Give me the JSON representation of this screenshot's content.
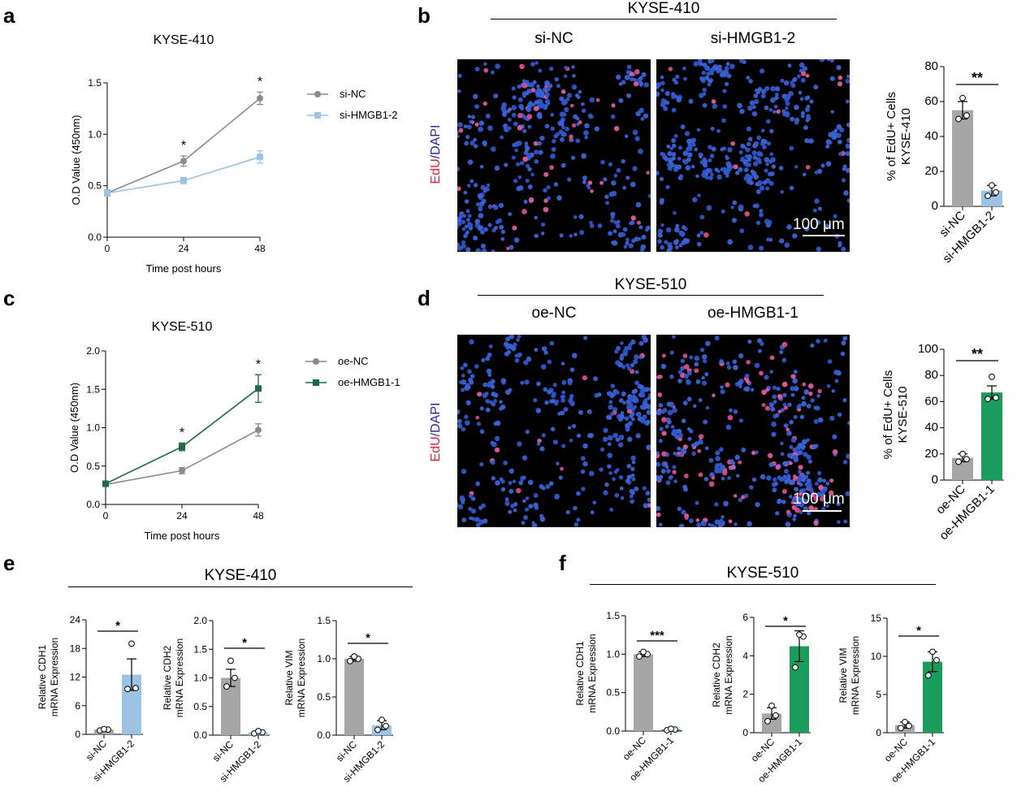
{
  "panels": {
    "a": "a",
    "b": "b",
    "c": "c",
    "d": "d",
    "e": "e",
    "f": "f"
  },
  "colors": {
    "gray": "#8c8c8c",
    "blue": "#9cc3e4",
    "green": "#1a8a55",
    "dark_green": "#1e6b45"
  },
  "b_header": {
    "title": "KYSE-410",
    "left": "si-NC",
    "right": "si-HMGB1-2",
    "stain_red": "EdU",
    "stain_blue": "/DAPI",
    "scale": "100 μm"
  },
  "d_header": {
    "title": "KYSE-510",
    "left": "oe-NC",
    "right": "oe-HMGB1-1",
    "stain_red": "EdU",
    "stain_blue": "/DAPI",
    "scale": "100 μm"
  },
  "e_header": {
    "title": "KYSE-410"
  },
  "f_header": {
    "title": "KYSE-510"
  },
  "chart_data": [
    {
      "id": "a",
      "type": "line",
      "title": "KYSE-410",
      "xlabel": "Time post hours",
      "ylabel": "O.D Value (450nm)",
      "x": [
        0,
        24,
        48
      ],
      "xticks": [
        "0",
        "24",
        "48"
      ],
      "yticks": [
        "0.0",
        "0.5",
        "1.0",
        "1.5"
      ],
      "ylim": [
        0,
        1.5
      ],
      "series": [
        {
          "name": "si-NC",
          "values": [
            0.43,
            0.74,
            1.35
          ],
          "err": [
            0.03,
            0.05,
            0.06
          ],
          "color": "#8c8c8c",
          "marker": "circle"
        },
        {
          "name": "si-HMGB1-2",
          "values": [
            0.43,
            0.55,
            0.78
          ],
          "err": [
            0.03,
            0.03,
            0.06
          ],
          "color": "#9cc3e4",
          "marker": "square"
        }
      ],
      "annotations": [
        {
          "x": 24,
          "text": "*"
        },
        {
          "x": 48,
          "text": "*"
        }
      ],
      "legend": "right"
    },
    {
      "id": "c",
      "type": "line",
      "title": "KYSE-510",
      "xlabel": "Time post hours",
      "ylabel": "O.D Value (450nm)",
      "x": [
        0,
        24,
        48
      ],
      "xticks": [
        "0",
        "24",
        "48"
      ],
      "yticks": [
        "0.0",
        "0.5",
        "1.0",
        "1.5",
        "2.0"
      ],
      "ylim": [
        0,
        2.0
      ],
      "series": [
        {
          "name": "oe-NC",
          "values": [
            0.26,
            0.44,
            0.97
          ],
          "err": [
            0.02,
            0.04,
            0.08
          ],
          "color": "#8c8c8c",
          "marker": "circle"
        },
        {
          "name": "oe-HMGB1-1",
          "values": [
            0.27,
            0.75,
            1.51
          ],
          "err": [
            0.02,
            0.05,
            0.18
          ],
          "color": "#1e6b45",
          "marker": "square"
        }
      ],
      "annotations": [
        {
          "x": 24,
          "text": "*"
        },
        {
          "x": 48,
          "text": "*"
        }
      ],
      "legend": "right"
    },
    {
      "id": "b-bar",
      "type": "bar",
      "ylabel": [
        "% of EdU+ Cells",
        "KYSE-410"
      ],
      "categories": [
        "si-NC",
        "si-HMGB1-2"
      ],
      "values": [
        55,
        9
      ],
      "err": [
        5,
        3
      ],
      "points": [
        [
          50,
          52,
          62
        ],
        [
          6,
          8,
          12
        ]
      ],
      "colors": [
        "#a6a6a6",
        "#9cc3e4"
      ],
      "yticks": [
        "0",
        "20",
        "40",
        "60",
        "80"
      ],
      "ylim": [
        0,
        80
      ],
      "sig": "**"
    },
    {
      "id": "d-bar",
      "type": "bar",
      "ylabel": [
        "% of EdU+ Cells",
        "KYSE-510"
      ],
      "categories": [
        "oe-NC",
        "oe-HMGB1-1"
      ],
      "values": [
        17,
        67
      ],
      "err": [
        3,
        5
      ],
      "points": [
        [
          14,
          16,
          20
        ],
        [
          62,
          63,
          79
        ]
      ],
      "colors": [
        "#a6a6a6",
        "#1a9c5c"
      ],
      "yticks": [
        "0",
        "20",
        "40",
        "60",
        "80",
        "100"
      ],
      "ylim": [
        0,
        100
      ],
      "sig": "**"
    },
    {
      "id": "e1",
      "type": "bar",
      "ylabel": [
        "Relative CDH1",
        "mRNA Expression"
      ],
      "categories": [
        "si-NC",
        "si-HMGB1-2"
      ],
      "values": [
        1.0,
        12.5
      ],
      "err": [
        0.2,
        3.3
      ],
      "points": [
        [
          0.8,
          1.0,
          1.1
        ],
        [
          9.5,
          9.7,
          19.0
        ]
      ],
      "colors": [
        "#a6a6a6",
        "#9cc3e4"
      ],
      "yticks": [
        "0",
        "6",
        "12",
        "18",
        "24"
      ],
      "ylim": [
        0,
        24
      ],
      "sig": "*"
    },
    {
      "id": "e2",
      "type": "bar",
      "ylabel": [
        "Relative CDH2",
        "mRNA Expression"
      ],
      "categories": [
        "si-NC",
        "si-HMGB1-2"
      ],
      "values": [
        1.0,
        0.05
      ],
      "err": [
        0.15,
        0.02
      ],
      "points": [
        [
          0.85,
          1.0,
          1.3
        ],
        [
          0.03,
          0.05,
          0.07
        ]
      ],
      "colors": [
        "#a6a6a6",
        "#9cc3e4"
      ],
      "yticks": [
        "0.0",
        "0.5",
        "1.0",
        "1.5",
        "2.0"
      ],
      "ylim": [
        0,
        2.0
      ],
      "sig": "*"
    },
    {
      "id": "e3",
      "type": "bar",
      "ylabel": [
        "Relative VIM",
        "mRNA Expression"
      ],
      "categories": [
        "si-NC",
        "si-HMGB1-2"
      ],
      "values": [
        1.0,
        0.13
      ],
      "err": [
        0.03,
        0.06
      ],
      "points": [
        [
          0.97,
          1.0,
          1.03
        ],
        [
          0.07,
          0.12,
          0.2
        ]
      ],
      "colors": [
        "#a6a6a6",
        "#9cc3e4"
      ],
      "yticks": [
        "0.0",
        "0.5",
        "1.0",
        "1.5"
      ],
      "ylim": [
        0,
        1.5
      ],
      "sig": "*"
    },
    {
      "id": "f1",
      "type": "bar",
      "ylabel": [
        "Relative CDH1",
        "mRNA Expression"
      ],
      "categories": [
        "oe-NC",
        "oe-HMGB1-1"
      ],
      "values": [
        1.0,
        0.02
      ],
      "err": [
        0.03,
        0.01
      ],
      "points": [
        [
          0.97,
          1.0,
          1.03
        ],
        [
          0.01,
          0.02,
          0.03
        ]
      ],
      "colors": [
        "#a6a6a6",
        "#1a9c5c"
      ],
      "yticks": [
        "0.0",
        "0.5",
        "1.0",
        "1.5"
      ],
      "ylim": [
        0,
        1.5
      ],
      "sig": "***"
    },
    {
      "id": "f2",
      "type": "bar",
      "ylabel": [
        "Relative CDH2",
        "mRNA Expression"
      ],
      "categories": [
        "oe-NC",
        "oe-HMGB1-1"
      ],
      "values": [
        1.0,
        4.5
      ],
      "err": [
        0.3,
        0.8
      ],
      "points": [
        [
          0.6,
          0.9,
          1.4
        ],
        [
          3.4,
          5.0,
          5.1
        ]
      ],
      "colors": [
        "#a6a6a6",
        "#1a9c5c"
      ],
      "yticks": [
        "0",
        "2",
        "4",
        "6"
      ],
      "ylim": [
        0,
        6
      ],
      "sig": "*"
    },
    {
      "id": "f3",
      "type": "bar",
      "ylabel": [
        "Relative VIM",
        "mRNA Expression"
      ],
      "categories": [
        "oe-NC",
        "oe-HMGB1-1"
      ],
      "values": [
        1.0,
        9.3
      ],
      "err": [
        0.4,
        1.3
      ],
      "points": [
        [
          0.6,
          0.9,
          1.4
        ],
        [
          7.5,
          9.5,
          10.6
        ]
      ],
      "colors": [
        "#a6a6a6",
        "#1a9c5c"
      ],
      "yticks": [
        "0",
        "5",
        "10",
        "15"
      ],
      "ylim": [
        0,
        15
      ],
      "sig": "*"
    }
  ]
}
